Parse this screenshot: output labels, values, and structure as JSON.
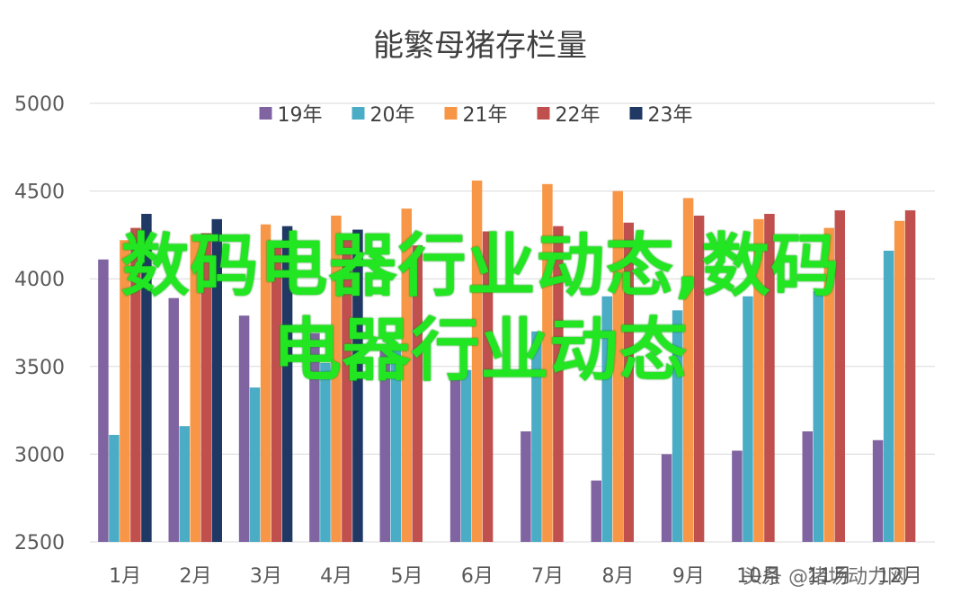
{
  "chart_data": {
    "type": "bar",
    "title": "能繁母猪存栏量",
    "categories": [
      "1月",
      "2月",
      "3月",
      "4月",
      "5月",
      "6月",
      "7月",
      "8月",
      "9月",
      "10月",
      "11月",
      "12月"
    ],
    "series": [
      {
        "name": "19年",
        "color": "#8064a2",
        "values": [
          4110,
          3890,
          3790,
          3690,
          3600,
          3460,
          3130,
          2850,
          3000,
          3020,
          3130,
          3080
        ]
      },
      {
        "name": "20年",
        "color": "#4bacc6",
        "values": [
          3110,
          3160,
          3380,
          3520,
          3620,
          3480,
          3700,
          3900,
          3820,
          3900,
          3930,
          4160
        ]
      },
      {
        "name": "21年",
        "color": "#f79646",
        "values": [
          4220,
          4250,
          4310,
          4360,
          4400,
          4560,
          4540,
          4500,
          4460,
          4340,
          4290,
          4330
        ]
      },
      {
        "name": "22年",
        "color": "#c0504d",
        "values": [
          4290,
          4260,
          4180,
          4240,
          4190,
          4270,
          4300,
          4320,
          4360,
          4370,
          4390,
          4390
        ]
      },
      {
        "name": "23年",
        "color": "#1f3864",
        "values": [
          4370,
          4340,
          4300,
          4280,
          null,
          null,
          null,
          null,
          null,
          null,
          null,
          null
        ]
      }
    ],
    "ylim": [
      2500,
      5000
    ],
    "yticks": [
      2500,
      3000,
      3500,
      4000,
      4500,
      5000
    ],
    "grid": true,
    "legend": "top"
  },
  "overlay": {
    "line1": "数码电器行业动态,数码",
    "line2": "电器行业动态"
  },
  "watermark": "头条 @猪场动力网"
}
